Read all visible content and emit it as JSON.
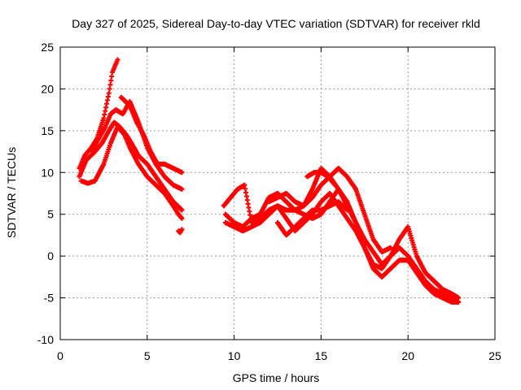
{
  "chart_data": {
    "type": "scatter",
    "title": "Day 327 of 2025, Sidereal Day-to-day VTEC variation (SDTVAR) for receiver rkld",
    "xlabel": "GPS time / hours",
    "ylabel": "SDTVAR / TECUs",
    "xlim": [
      0,
      25
    ],
    "ylim": [
      -10,
      25
    ],
    "xticks": [
      0,
      5,
      10,
      15,
      20,
      25
    ],
    "yticks": [
      -10,
      -5,
      0,
      5,
      10,
      15,
      20,
      25
    ],
    "grid": true,
    "marker": "+",
    "color": "#ff0000",
    "series": [
      {
        "name": "s1",
        "x": [
          1.1,
          1.4,
          1.8,
          2.1,
          2.5,
          2.8,
          3.0,
          3.3
        ],
        "y": [
          10.5,
          12.0,
          13.0,
          14.0,
          16.5,
          19.5,
          22.0,
          23.5
        ]
      },
      {
        "name": "s2",
        "x": [
          1.1,
          1.5,
          2.0,
          2.4,
          2.8,
          3.1,
          3.4,
          3.8,
          4.1,
          4.5,
          5.0,
          5.5,
          6.0,
          6.5,
          7.0
        ],
        "y": [
          9.5,
          11.5,
          12.5,
          13.5,
          15.0,
          16.0,
          15.5,
          14.5,
          13.5,
          12.0,
          11.0,
          9.5,
          8.0,
          6.5,
          5.5
        ]
      },
      {
        "name": "s3",
        "x": [
          1.2,
          1.6,
          2.0,
          2.5,
          2.9,
          3.3,
          3.7,
          4.0,
          4.5,
          5.0,
          5.5,
          6.0,
          6.5,
          6.8,
          7.0
        ],
        "y": [
          9.0,
          8.7,
          9.0,
          11.0,
          13.5,
          15.5,
          14.5,
          13.0,
          11.0,
          9.5,
          8.5,
          7.5,
          6.0,
          5.0,
          4.5
        ]
      },
      {
        "name": "s4",
        "x": [
          1.8,
          2.2,
          2.6,
          2.9,
          3.2,
          3.6,
          4.0,
          4.5,
          5.0,
          5.5,
          6.0,
          6.5,
          7.0
        ],
        "y": [
          12.5,
          14.0,
          15.5,
          17.0,
          17.5,
          17.0,
          18.5,
          16.0,
          13.0,
          11.0,
          9.5,
          8.5,
          8.0
        ]
      },
      {
        "name": "s5",
        "x": [
          3.5,
          4.0,
          4.4,
          4.8,
          5.2,
          5.6,
          6.0,
          6.5,
          7.0
        ],
        "y": [
          19.0,
          18.0,
          16.0,
          14.5,
          12.5,
          11.0,
          11.0,
          10.5,
          10.0
        ]
      },
      {
        "name": "s6",
        "x": [
          6.8,
          6.9,
          7.0
        ],
        "y": [
          3.0,
          2.8,
          3.2
        ]
      },
      {
        "name": "s7",
        "x": [
          9.4,
          9.8,
          10.2,
          10.6,
          11.0,
          11.5,
          12.0,
          12.5,
          13.0,
          13.5,
          14.0,
          14.5,
          15.0,
          15.5,
          16.0,
          16.5,
          17.0,
          17.5,
          18.0,
          18.5,
          19.0,
          19.5,
          20.0,
          20.5,
          21.0,
          21.5,
          22.0,
          22.5,
          22.9
        ],
        "y": [
          6.0,
          7.0,
          8.0,
          8.5,
          4.0,
          4.5,
          5.5,
          6.0,
          5.5,
          5.5,
          5.0,
          4.5,
          5.0,
          6.5,
          8.0,
          6.5,
          4.0,
          1.0,
          -1.0,
          -1.5,
          0.0,
          2.0,
          3.5,
          0.0,
          -2.0,
          -3.0,
          -4.0,
          -4.5,
          -5.0
        ]
      },
      {
        "name": "s8",
        "x": [
          9.5,
          10.0,
          10.5,
          11.0,
          11.5,
          12.0,
          12.5,
          13.0,
          13.5,
          14.0,
          14.5,
          15.0,
          15.5,
          16.0,
          16.5,
          17.0,
          17.5,
          18.0,
          18.5,
          19.0,
          19.5,
          20.0,
          20.5,
          21.0,
          21.5,
          22.0,
          22.5,
          22.9
        ],
        "y": [
          5.0,
          4.0,
          3.5,
          4.5,
          5.0,
          7.0,
          7.5,
          6.5,
          5.5,
          6.0,
          8.0,
          10.5,
          9.5,
          8.0,
          6.0,
          4.0,
          2.0,
          0.5,
          -1.0,
          0.0,
          1.0,
          0.0,
          -1.5,
          -3.0,
          -4.0,
          -4.5,
          -5.0,
          -5.5
        ]
      },
      {
        "name": "s9",
        "x": [
          9.5,
          10.0,
          10.5,
          11.0,
          11.5,
          12.0,
          12.5,
          13.0,
          13.5,
          14.0,
          14.5,
          15.0,
          15.5,
          16.0,
          16.5,
          17.0,
          17.5,
          18.0,
          18.5,
          19.0,
          19.5,
          20.0,
          20.5,
          21.0,
          21.5,
          22.0,
          22.5,
          22.9
        ],
        "y": [
          4.0,
          3.5,
          3.0,
          3.5,
          4.0,
          5.0,
          6.0,
          4.5,
          3.0,
          4.0,
          5.0,
          6.5,
          7.5,
          6.0,
          4.5,
          3.0,
          1.0,
          -1.5,
          -2.5,
          -1.5,
          -0.5,
          -0.5,
          -2.0,
          -3.5,
          -4.5,
          -5.0,
          -5.5,
          -5.5
        ]
      },
      {
        "name": "s10",
        "x": [
          12.0,
          12.5,
          13.0,
          13.5,
          14.0,
          14.5,
          15.0,
          15.5,
          16.0,
          16.5,
          17.0,
          17.5,
          18.0,
          18.5,
          19.0
        ],
        "y": [
          6.5,
          7.0,
          7.5,
          6.5,
          6.0,
          7.0,
          8.5,
          9.5,
          10.5,
          9.5,
          8.0,
          5.0,
          2.0,
          0.5,
          1.0
        ]
      },
      {
        "name": "s11",
        "x": [
          12.5,
          13.0,
          13.5,
          14.0,
          14.5,
          15.0,
          15.5,
          16.0,
          16.5
        ],
        "y": [
          4.0,
          2.5,
          3.5,
          4.5,
          5.5,
          5.5,
          6.0,
          6.5,
          5.5
        ]
      },
      {
        "name": "s12",
        "x": [
          14.2,
          14.6,
          15.0,
          15.4,
          15.8
        ],
        "y": [
          9.5,
          10.0,
          10.0,
          9.5,
          8.5
        ]
      }
    ]
  }
}
